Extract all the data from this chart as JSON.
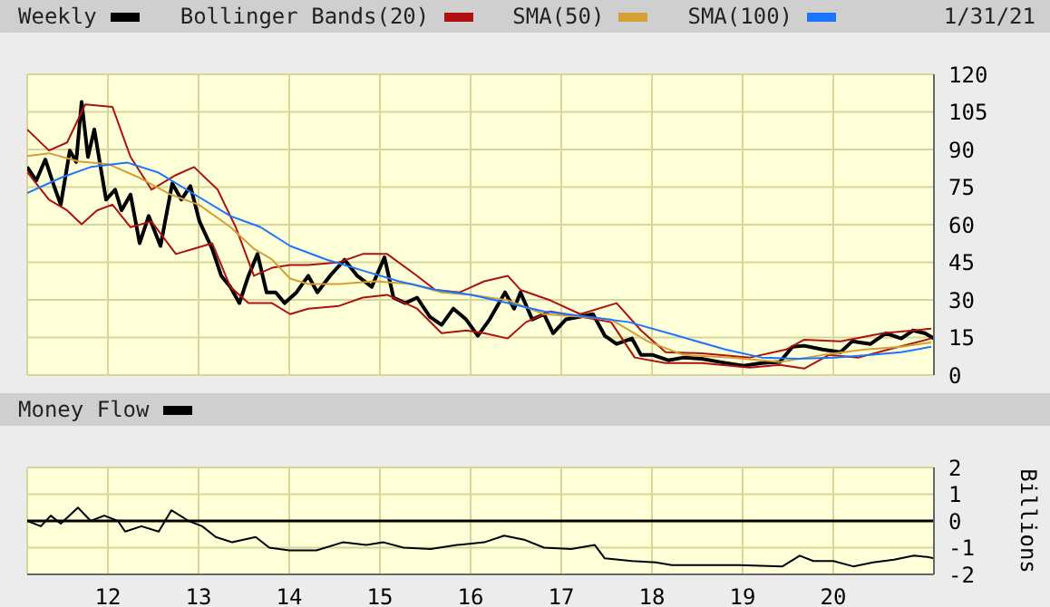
{
  "chart_data": [
    {
      "type": "line",
      "legend": "top",
      "grid": true,
      "tick_labels": "y",
      "annotations": [
        "1/31/21"
      ],
      "xlim": [
        2011.11,
        2021.11
      ],
      "xticks": [
        2012,
        2013,
        2014,
        2015,
        2016,
        2017,
        2018,
        2019,
        2020
      ],
      "ylim": [
        0,
        120
      ],
      "yticks": [
        0,
        15,
        30,
        45,
        60,
        75,
        90,
        105,
        120
      ],
      "series": [
        {
          "name": "Weekly",
          "color": "#000000",
          "x": [
            2011.11,
            2011.21,
            2011.31,
            2011.41,
            2011.48,
            2011.58,
            2011.65,
            2011.71,
            2011.78,
            2011.85,
            2011.91,
            2011.98,
            2012.08,
            2012.15,
            2012.25,
            2012.35,
            2012.45,
            2012.58,
            2012.71,
            2012.81,
            2012.91,
            2013.01,
            2013.15,
            2013.25,
            2013.35,
            2013.45,
            2013.55,
            2013.65,
            2013.75,
            2013.85,
            2013.95,
            2014.08,
            2014.21,
            2014.31,
            2014.45,
            2014.61,
            2014.75,
            2014.91,
            2015.05,
            2015.15,
            2015.28,
            2015.41,
            2015.55,
            2015.68,
            2015.81,
            2015.95,
            2016.08,
            2016.21,
            2016.38,
            2016.48,
            2016.55,
            2016.68,
            2016.81,
            2016.91,
            2017.05,
            2017.21,
            2017.35,
            2017.48,
            2017.61,
            2017.78,
            2017.88,
            2018.01,
            2018.18,
            2018.35,
            2018.55,
            2018.75,
            2019.01,
            2019.21,
            2019.41,
            2019.55,
            2019.68,
            2019.88,
            2020.08,
            2020.21,
            2020.41,
            2020.58,
            2020.75,
            2020.88,
            2021.01,
            2021.11
          ],
          "values": [
            83,
            77.6,
            86,
            75,
            68,
            89.6,
            85,
            109,
            87,
            98,
            85,
            70,
            74,
            65.7,
            72,
            52.6,
            63.5,
            51.5,
            76.5,
            70,
            75.4,
            61.3,
            50.4,
            39.6,
            35.2,
            28.7,
            39.6,
            48.3,
            33,
            33,
            28.7,
            33,
            39.6,
            33,
            39.6,
            46,
            39.6,
            35.2,
            47,
            30.9,
            28.7,
            30.9,
            23.3,
            20,
            26.5,
            22.2,
            15.7,
            22.2,
            33,
            26.5,
            33,
            22.2,
            24.3,
            16.7,
            22.2,
            23.3,
            24.3,
            15.7,
            12.4,
            14.6,
            8,
            8,
            5.9,
            7,
            6.5,
            5.2,
            3.7,
            4.8,
            5.2,
            11.3,
            11.7,
            10.2,
            9.1,
            13.5,
            12.4,
            16.7,
            14.6,
            17.8,
            16.7,
            14.6
          ]
        },
        {
          "name": "Bollinger Bands(20)",
          "color": "#b01010",
          "x": [
            2011.11,
            2011.35,
            2011.55,
            2011.75,
            2012.05,
            2012.25,
            2012.48,
            2012.75,
            2012.95,
            2013.21,
            2013.41,
            2013.61,
            2013.81,
            2014.01,
            2014.21,
            2014.55,
            2014.81,
            2015.08,
            2015.41,
            2015.61,
            2015.88,
            2016.15,
            2016.41,
            2016.55,
            2016.88,
            2017.21,
            2017.61,
            2017.88,
            2018.15,
            2018.55,
            2019.08,
            2019.48,
            2019.68,
            2020.08,
            2020.55,
            2021.08
          ],
          "values": [
            98,
            89.6,
            92.8,
            108,
            107,
            87,
            74,
            79.8,
            83,
            74,
            59,
            39.6,
            42.8,
            43.9,
            43.9,
            45,
            48.3,
            48.3,
            39.6,
            34,
            33,
            37.4,
            39.6,
            34,
            29.8,
            24.3,
            28.7,
            17.8,
            9.1,
            8.7,
            7,
            10.2,
            14.1,
            13.5,
            16.7,
            18.5
          ]
        },
        {
          "color": "#b01010",
          "x": [
            2011.11,
            2011.35,
            2011.55,
            2011.71,
            2011.88,
            2012.05,
            2012.25,
            2012.48,
            2012.75,
            2012.95,
            2013.15,
            2013.35,
            2013.55,
            2013.81,
            2014.01,
            2014.21,
            2014.55,
            2014.81,
            2015.08,
            2015.41,
            2015.68,
            2015.95,
            2016.15,
            2016.41,
            2016.61,
            2016.88,
            2017.21,
            2017.55,
            2017.81,
            2018.15,
            2018.55,
            2019.08,
            2019.41,
            2019.68,
            2019.95,
            2020.28,
            2020.61,
            2021.08
          ],
          "values": [
            81,
            70,
            65.7,
            60.2,
            65.7,
            68,
            59,
            61.3,
            48.3,
            50.4,
            52.6,
            35.2,
            28.7,
            28.7,
            24.3,
            26.5,
            27.6,
            30.9,
            32,
            26.5,
            16.7,
            17.8,
            16.7,
            14.6,
            21.1,
            25.4,
            23.3,
            21.1,
            7,
            4.8,
            4.8,
            3,
            4.1,
            2.6,
            8,
            7,
            10.2,
            14.6
          ]
        },
        {
          "name": "SMA(50)",
          "color": "#d4a035",
          "x": [
            2011.11,
            2011.35,
            2011.68,
            2012.01,
            2012.35,
            2012.68,
            2013.01,
            2013.35,
            2013.61,
            2013.81,
            2014.01,
            2014.21,
            2014.55,
            2014.95,
            2015.35,
            2015.68,
            2016.01,
            2016.41,
            2016.81,
            2017.21,
            2017.55,
            2017.95,
            2018.35,
            2018.88,
            2019.41,
            2019.88,
            2020.35,
            2020.75,
            2021.08
          ],
          "values": [
            87.4,
            88.5,
            85.2,
            84.1,
            78.7,
            72.2,
            67.8,
            59.1,
            50.4,
            46.1,
            38.5,
            36.3,
            36.3,
            37.4,
            36.3,
            33,
            32,
            29.8,
            24.3,
            23.3,
            22.2,
            13.5,
            8,
            7,
            5.2,
            8,
            10.2,
            11.3,
            13
          ]
        },
        {
          "name": "SMA(100)",
          "color": "#1a75ff",
          "x": [
            2011.11,
            2011.48,
            2011.81,
            2012.21,
            2012.55,
            2012.95,
            2013.35,
            2013.68,
            2014.01,
            2014.41,
            2014.81,
            2015.21,
            2015.61,
            2016.01,
            2016.41,
            2016.81,
            2017.28,
            2017.75,
            2018.28,
            2018.81,
            2019.21,
            2019.61,
            2020.01,
            2020.41,
            2020.75,
            2021.08
          ],
          "values": [
            72.6,
            78.7,
            83,
            84.8,
            80.9,
            72.2,
            63.5,
            59.1,
            51.5,
            46.1,
            41.7,
            37.4,
            34.1,
            32,
            28.7,
            25.4,
            23.3,
            21.1,
            15.7,
            10.2,
            7,
            6.5,
            7,
            8,
            9.1,
            11.3
          ]
        }
      ]
    },
    {
      "type": "line",
      "legend": "top left",
      "grid": true,
      "ylabel": "Billions",
      "xlim": [
        2011.11,
        2021.11
      ],
      "xticks": [
        {
          "value": 2012,
          "label": "12"
        },
        {
          "value": 2013,
          "label": "13"
        },
        {
          "value": 2014,
          "label": "14"
        },
        {
          "value": 2015,
          "label": "15"
        },
        {
          "value": 2016,
          "label": "16"
        },
        {
          "value": 2017,
          "label": "17"
        },
        {
          "value": 2018,
          "label": "18"
        },
        {
          "value": 2019,
          "label": "19"
        },
        {
          "value": 2020,
          "label": "20"
        }
      ],
      "ylim": [
        -2,
        2
      ],
      "yticks": [
        -2,
        -1,
        0,
        1,
        2
      ],
      "ref_lines": [
        {
          "axis": "y",
          "value": 0,
          "color": "#000000"
        }
      ],
      "series": [
        {
          "name": "Money Flow",
          "color": "#000000",
          "x": [
            2011.11,
            2011.26,
            2011.37,
            2011.48,
            2011.67,
            2011.81,
            2011.96,
            2012.11,
            2012.19,
            2012.37,
            2012.56,
            2012.7,
            2012.89,
            2013.04,
            2013.19,
            2013.37,
            2013.63,
            2013.78,
            2014.0,
            2014.3,
            2014.59,
            2014.85,
            2015.04,
            2015.26,
            2015.56,
            2015.85,
            2016.15,
            2016.37,
            2016.59,
            2016.81,
            2017.11,
            2017.37,
            2017.48,
            2017.78,
            2018.04,
            2018.22,
            2018.67,
            2018.96,
            2019.44,
            2019.63,
            2019.78,
            2020.0,
            2020.22,
            2020.44,
            2020.67,
            2020.89,
            2021.04,
            2021.11
          ],
          "values": [
            0,
            -0.2,
            0.2,
            -0.1,
            0.5,
            0,
            0.2,
            0,
            -0.4,
            -0.2,
            -0.4,
            0.4,
            0,
            -0.2,
            -0.6,
            -0.8,
            -0.6,
            -1,
            -1.1,
            -1.1,
            -0.8,
            -0.9,
            -0.8,
            -1,
            -1.05,
            -0.9,
            -0.8,
            -0.55,
            -0.7,
            -1,
            -1.05,
            -0.9,
            -1.4,
            -1.5,
            -1.55,
            -1.65,
            -1.65,
            -1.65,
            -1.7,
            -1.3,
            -1.5,
            -1.5,
            -1.7,
            -1.55,
            -1.45,
            -1.3,
            -1.35,
            -1.4
          ]
        }
      ]
    }
  ]
}
